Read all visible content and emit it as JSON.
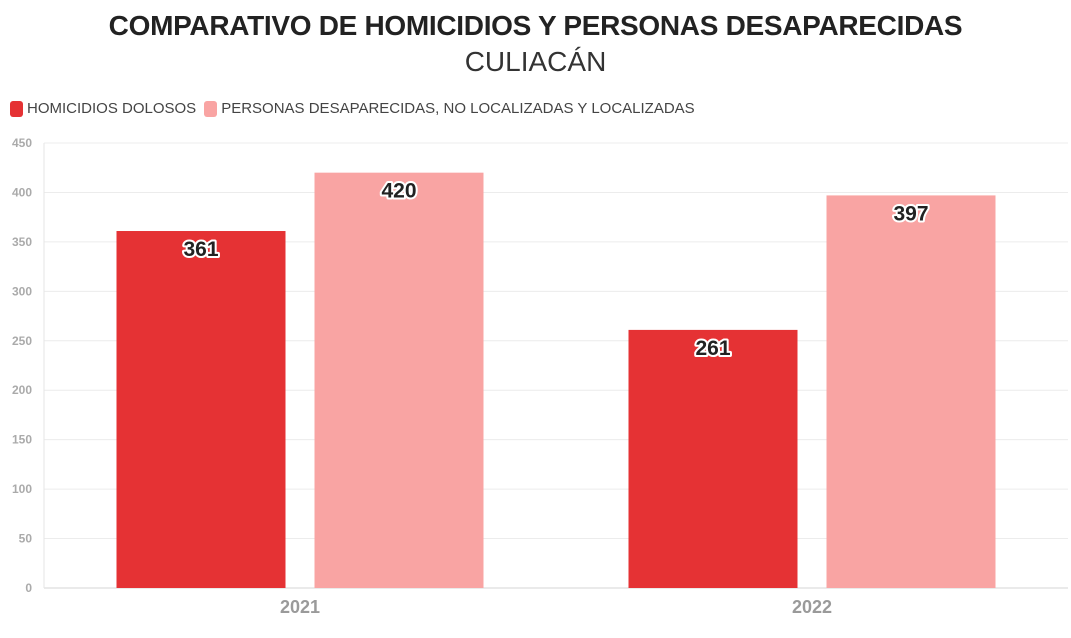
{
  "chart_data": {
    "type": "bar",
    "title": "COMPARATIVO DE HOMICIDIOS Y PERSONAS DESAPARECIDAS",
    "subtitle": "CULIACÁN",
    "categories": [
      "2021",
      "2022"
    ],
    "series": [
      {
        "name": "HOMICIDIOS DOLOSOS",
        "color": "#e53234",
        "values": [
          361,
          261
        ]
      },
      {
        "name": "PERSONAS DESAPARECIDAS, NO LOCALIZADAS Y LOCALIZADAS",
        "color": "#f9a4a3",
        "values": [
          420,
          397
        ]
      }
    ],
    "ylim": [
      0,
      450
    ],
    "yticks": [
      0,
      50,
      100,
      150,
      200,
      250,
      300,
      350,
      400,
      450
    ],
    "xlabel": "",
    "ylabel": "",
    "grid": true,
    "legend_position": "top-left"
  }
}
